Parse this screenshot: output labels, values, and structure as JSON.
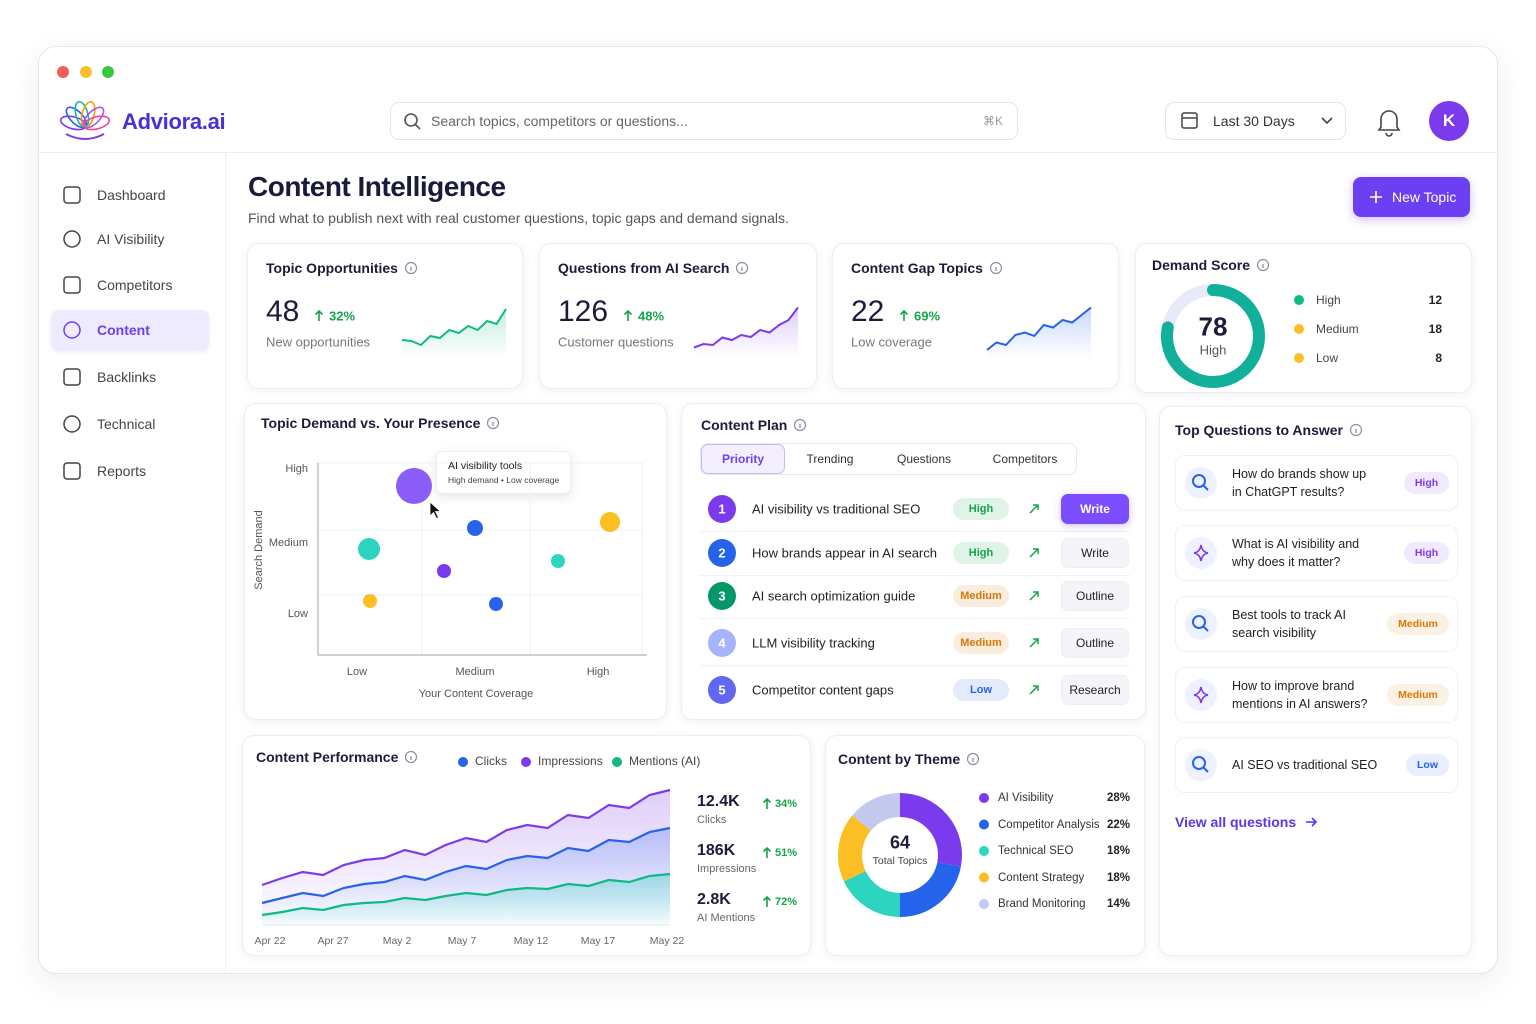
{
  "brand": "Adviora.ai",
  "search": {
    "placeholder": "Search topics, competitors or questions...",
    "shortcut": "⌘K"
  },
  "date_range": "Last 30 Days",
  "avatar": "K",
  "nav": [
    {
      "label": "Dashboard"
    },
    {
      "label": "AI Visibility"
    },
    {
      "label": "Competitors"
    },
    {
      "label": "Content",
      "active": true
    },
    {
      "label": "Backlinks"
    },
    {
      "label": "Technical"
    },
    {
      "label": "Reports"
    }
  ],
  "page": {
    "title": "Content Intelligence",
    "subtitle": "Find what to publish next with real customer questions, topic gaps and demand signals.",
    "button": "New Topic"
  },
  "kpis": [
    {
      "title": "Topic Opportunities",
      "value": 48,
      "change": "32%",
      "caption": "New opportunities",
      "color": "#10b981"
    },
    {
      "title": "Questions from AI Search",
      "value": 126,
      "change": "48%",
      "caption": "Customer questions",
      "color": "#7c3aed"
    },
    {
      "title": "Content Gap Topics",
      "value": 22,
      "change": "69%",
      "caption": "Low coverage",
      "color": "#2563eb"
    }
  ],
  "demand_score": {
    "title": "Demand Score",
    "value": 78,
    "range": [
      0,
      100
    ],
    "label": "High",
    "color": "#12b09a",
    "breakdown": [
      {
        "name": "High",
        "value": 12,
        "color": "#10b981"
      },
      {
        "name": "Medium",
        "value": 18,
        "color": "#fbbf24"
      },
      {
        "name": "Low",
        "value": 8,
        "color": "#fbbf24"
      }
    ]
  },
  "topic_demand": {
    "title": "Topic Demand vs. Your Presence",
    "y_label": "Search Demand",
    "y_ticks": [
      "High",
      "Medium",
      "Low"
    ],
    "x_ticks": [
      "Low",
      "Medium",
      "High"
    ],
    "x_label": "Your Content Coverage",
    "tooltip": {
      "title": "AI visibility tools",
      "text": "High demand • Low coverage"
    }
  },
  "content_plan": {
    "title": "Content Plan",
    "tabs": [
      {
        "label": "Priority",
        "active": true
      },
      {
        "label": "Trending"
      },
      {
        "label": "Questions"
      },
      {
        "label": "Competitors"
      }
    ],
    "rows": [
      {
        "rank": 1,
        "color": "#7c3aed",
        "topic": "AI visibility vs traditional SEO",
        "priority": "High",
        "priority_color": "#16a34a",
        "action": "Write",
        "primary": true
      },
      {
        "rank": 2,
        "color": "#2563eb",
        "topic": "How brands appear in AI search",
        "priority": "High",
        "priority_color": "#16a34a",
        "action": "Write"
      },
      {
        "rank": 3,
        "color": "#059669",
        "topic": "AI search optimization guide",
        "priority": "Medium",
        "priority_color": "#d97706",
        "action": "Outline"
      },
      {
        "rank": 4,
        "color": "#a5b4fc",
        "topic": "LLM visibility tracking",
        "priority": "Medium",
        "priority_color": "#d97706",
        "action": "Outline"
      },
      {
        "rank": 5,
        "color": "#6366f1",
        "topic": "Competitor content gaps",
        "priority": "Low",
        "priority_color": "#2563eb",
        "action": "Research"
      }
    ]
  },
  "top_questions": {
    "title": "Top Questions to Answer",
    "items": [
      {
        "lines": [
          "How do brands show up",
          "in ChatGPT results?"
        ],
        "priority": "High",
        "priority_color": "#7c3aed"
      },
      {
        "lines": [
          "What is AI visibility and",
          "why does it matter?"
        ],
        "priority": "High",
        "priority_color": "#7c3aed"
      },
      {
        "lines": [
          "Best tools to track AI",
          "search visibility"
        ],
        "priority": "Medium",
        "priority_color": "#d97706"
      },
      {
        "lines": [
          "How to improve brand",
          "mentions in AI answers?"
        ],
        "priority": "Medium",
        "priority_color": "#d97706"
      },
      {
        "lines": [
          "AI SEO vs traditional SEO"
        ],
        "priority": "Low",
        "priority_color": "#2563eb"
      }
    ],
    "link": "View all questions"
  },
  "performance": {
    "title": "Content Performance",
    "legend": [
      {
        "name": "Clicks",
        "color": "#2563eb"
      },
      {
        "name": "Impressions",
        "color": "#7c3aed"
      },
      {
        "name": "Mentions (AI)",
        "color": "#10b981"
      }
    ],
    "x_labels": [
      "Apr 22",
      "Apr 27",
      "May 2",
      "May 7",
      "May 12",
      "May 17",
      "May 22"
    ],
    "stats": [
      {
        "value": "12.4K",
        "label": "Clicks",
        "change": "34%"
      },
      {
        "value": "186K",
        "label": "Impressions",
        "change": "51%"
      },
      {
        "value": "2.8K",
        "label": "AI Mentions",
        "change": "72%"
      }
    ]
  },
  "theme": {
    "title": "Content by Theme",
    "total": 64,
    "total_label": "Total Topics",
    "segments": [
      {
        "name": "AI Visibility",
        "value": 28,
        "value_label": "28%",
        "color": "#7c3aed"
      },
      {
        "name": "Competitor Analysis",
        "value": 22,
        "value_label": "22%",
        "color": "#2563eb"
      },
      {
        "name": "Technical SEO",
        "value": 18,
        "value_label": "18%",
        "color": "#2dd4bf"
      },
      {
        "name": "Content Strategy",
        "value": 18,
        "value_label": "18%",
        "color": "#fbbf24"
      },
      {
        "name": "Brand Monitoring",
        "value": 14,
        "value_label": "14%",
        "color": "#c3c9ee"
      }
    ]
  }
}
